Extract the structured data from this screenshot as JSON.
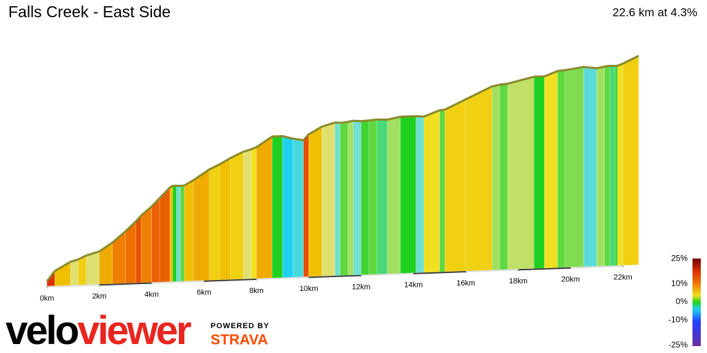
{
  "chart_data": {
    "type": "profile",
    "title": "Falls Creek - East Side",
    "summary": "22.6 km at 4.3%",
    "km": [
      0,
      0.3,
      0.9,
      1.2,
      1.5,
      2.0,
      2.5,
      3.0,
      3.4,
      3.6,
      4.0,
      4.3,
      4.7,
      4.8,
      4.95,
      5.1,
      5.25,
      5.6,
      6.2,
      6.6,
      7.0,
      7.5,
      7.8,
      8.0,
      8.6,
      9.0,
      9.4,
      9.8,
      10.0,
      10.5,
      11.0,
      11.2,
      11.5,
      11.7,
      12.0,
      12.3,
      12.6,
      13.0,
      13.5,
      14.1,
      14.4,
      15.0,
      15.2,
      16.0,
      17.0,
      17.3,
      17.6,
      18.6,
      19.0,
      19.5,
      19.8,
      20.5,
      21.0,
      21.3,
      21.5,
      21.7,
      21.8,
      22.0,
      22.6
    ],
    "grade": [
      14,
      6,
      3,
      5,
      3,
      7,
      9,
      10,
      12,
      9,
      11,
      11,
      6,
      0,
      -1,
      1,
      6,
      7,
      5,
      6,
      5,
      3,
      4,
      7,
      0,
      -3,
      -2,
      12,
      6,
      3,
      -1,
      1,
      2,
      -1,
      0.5,
      1,
      -0.5,
      2,
      0,
      -1,
      4,
      1,
      5,
      5,
      2,
      1,
      2.5,
      0,
      4,
      1,
      1.5,
      -1.5,
      2,
      1,
      -0.5,
      0.5,
      4,
      5
    ],
    "xlim": [
      0,
      22.6
    ],
    "xticks": [
      {
        "value": 0,
        "label": "0km"
      },
      {
        "value": 2,
        "label": "2km"
      },
      {
        "value": 4,
        "label": "4km"
      },
      {
        "value": 6,
        "label": "6km"
      },
      {
        "value": 8,
        "label": "8km"
      },
      {
        "value": 10,
        "label": "10km"
      },
      {
        "value": 12,
        "label": "12km"
      },
      {
        "value": 14,
        "label": "14km"
      },
      {
        "value": 16,
        "label": "16km"
      },
      {
        "value": 18,
        "label": "18km"
      },
      {
        "value": 20,
        "label": "20km"
      },
      {
        "value": 22,
        "label": "22km"
      }
    ],
    "color_scale_ticks": [
      {
        "value": 25,
        "label": "25%"
      },
      {
        "value": 10,
        "label": "10%"
      },
      {
        "value": 0,
        "label": "0%"
      },
      {
        "value": -10,
        "label": "-10%"
      },
      {
        "value": -25,
        "label": "-25%"
      }
    ],
    "brand": [
      "velo",
      "viewer"
    ],
    "powered_by": "POWERED BY",
    "strava": "STRAVA"
  }
}
